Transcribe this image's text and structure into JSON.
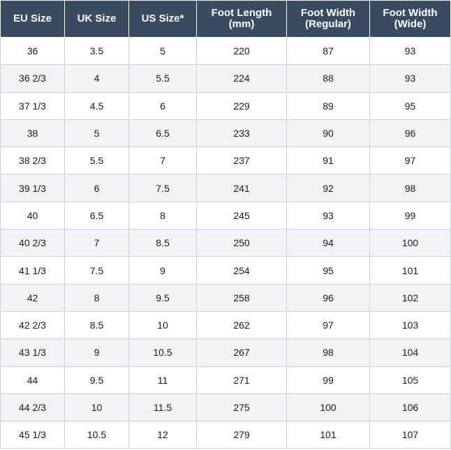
{
  "table": {
    "headers": [
      [
        "EU Size"
      ],
      [
        "UK Size"
      ],
      [
        "US Size*"
      ],
      [
        "Foot Length",
        "(mm)"
      ],
      [
        "Foot Width",
        "(Regular)"
      ],
      [
        "Foot Width",
        "(Wide)"
      ]
    ],
    "rows": [
      [
        "36",
        "3.5",
        "5",
        "220",
        "87",
        "93"
      ],
      [
        "36 2/3",
        "4",
        "5.5",
        "224",
        "88",
        "93"
      ],
      [
        "37 1/3",
        "4.5",
        "6",
        "229",
        "89",
        "95"
      ],
      [
        "38",
        "5",
        "6.5",
        "233",
        "90",
        "96"
      ],
      [
        "38 2/3",
        "5.5",
        "7",
        "237",
        "91",
        "97"
      ],
      [
        "39 1/3",
        "6",
        "7.5",
        "241",
        "92",
        "98"
      ],
      [
        "40",
        "6.5",
        "8",
        "245",
        "93",
        "99"
      ],
      [
        "40 2/3",
        "7",
        "8.5",
        "250",
        "94",
        "100"
      ],
      [
        "41 1/3",
        "7.5",
        "9",
        "254",
        "95",
        "101"
      ],
      [
        "42",
        "8",
        "9.5",
        "258",
        "96",
        "102"
      ],
      [
        "42 2/3",
        "8.5",
        "10",
        "262",
        "97",
        "103"
      ],
      [
        "43 1/3",
        "9",
        "10.5",
        "267",
        "98",
        "104"
      ],
      [
        "44",
        "9.5",
        "11",
        "271",
        "99",
        "105"
      ],
      [
        "44 2/3",
        "10",
        "11.5",
        "275",
        "100",
        "106"
      ],
      [
        "45 1/3",
        "10.5",
        "12",
        "279",
        "101",
        "107"
      ]
    ]
  }
}
